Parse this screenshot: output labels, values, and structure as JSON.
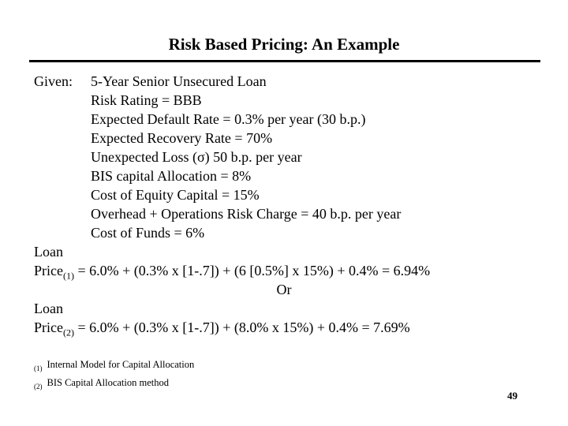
{
  "slide": {
    "title": "Risk Based Pricing: An Example",
    "given": {
      "label": "Given:",
      "lines": [
        "5-Year Senior Unsecured Loan",
        "Risk Rating = BBB",
        "Expected Default Rate = 0.3% per year (30 b.p.)",
        "Expected Recovery Rate = 70%",
        "Unexpected Loss (σ) 50 b.p. per year",
        "BIS capital Allocation = 8%",
        "Cost of Equity Capital = 15%",
        "Overhead + Operations Risk Charge = 40 b.p. per year",
        "Cost of Funds = 6%"
      ]
    },
    "loan_price_1": {
      "word1": "Loan",
      "word2": "Price",
      "subscript": "(1)",
      "formula": " = 6.0% + (0.3% x [1-.7]) + (6 [0.5%] x 15%) + 0.4% = 6.94%"
    },
    "or_separator": "Or",
    "loan_price_2": {
      "word1": "Loan",
      "word2": "Price",
      "subscript": "(2)",
      "formula": " = 6.0% + (0.3% x [1-.7]) + (8.0% x 15%) + 0.4% = 7.69%"
    },
    "footnotes": [
      {
        "marker": "(1)",
        "text": "Internal Model for Capital Allocation"
      },
      {
        "marker": "(2)",
        "text": "BIS Capital Allocation method"
      }
    ],
    "page_number": "49"
  }
}
